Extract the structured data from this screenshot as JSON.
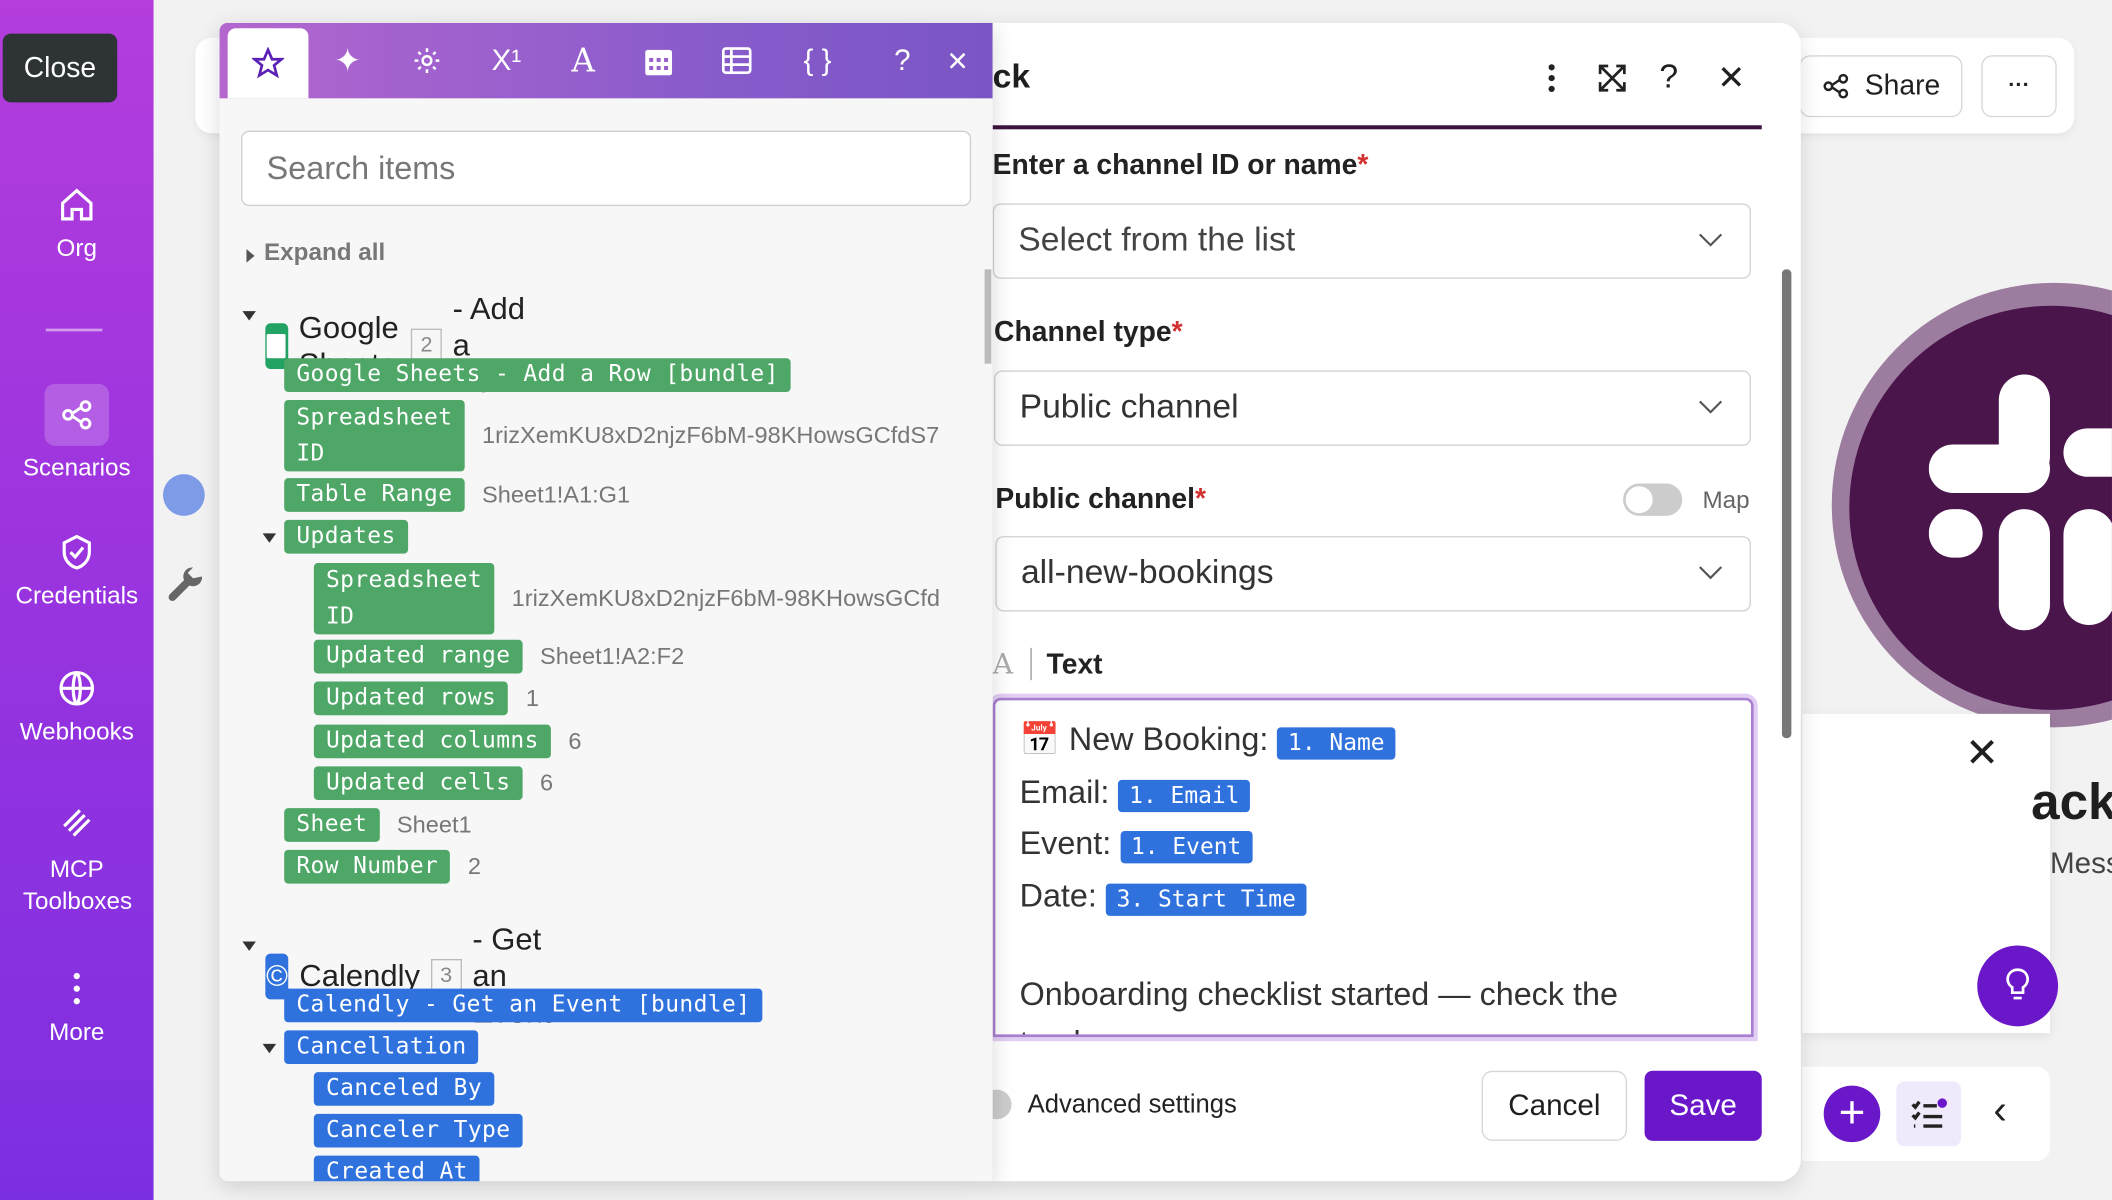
{
  "sidebar": {
    "close_tooltip": "Close",
    "items": [
      {
        "label": "Org",
        "icon": "home-icon"
      },
      {
        "label": "Scenarios",
        "icon": "share-nodes-icon",
        "active": true
      },
      {
        "label": "Credentials",
        "icon": "shield-check-icon"
      },
      {
        "label": "Webhooks",
        "icon": "globe-icon"
      },
      {
        "label": "MCP Toolboxes",
        "icon": "toolbox-icon"
      },
      {
        "label": "More",
        "icon": "kebab-icon"
      }
    ]
  },
  "topbar": {
    "share_label": "Share",
    "more_label": "···"
  },
  "mapper": {
    "tabs": [
      "star-icon",
      "sparkles-icon",
      "gear-icon",
      "superscript-icon",
      "text-icon",
      "calendar-icon",
      "table-icon",
      "braces-icon"
    ],
    "help_label": "?",
    "close_label": "×",
    "search_placeholder": "Search items",
    "expand_all": "Expand all",
    "modules": [
      {
        "app": "Google Sheets",
        "number": "2",
        "action": "- Add a Row",
        "bundle": "Google Sheets - Add a Row [bundle]",
        "fields": [
          {
            "label": "Spreadsheet\nID",
            "value": "1rizXemKU8xD2njzF6bM-98KHowsGCfdS7"
          },
          {
            "label": "Table Range",
            "value": "Sheet1!A1:G1"
          },
          {
            "label": "Updates",
            "value": ""
          },
          {
            "label": "Spreadsheet\nID",
            "value": "1rizXemKU8xD2njzF6bM-98KHowsGCfd"
          },
          {
            "label": "Updated range",
            "value": "Sheet1!A2:F2"
          },
          {
            "label": "Updated rows",
            "value": "1"
          },
          {
            "label": "Updated columns",
            "value": "6"
          },
          {
            "label": "Updated cells",
            "value": "6"
          },
          {
            "label": "Sheet",
            "value": "Sheet1"
          },
          {
            "label": "Row Number",
            "value": "2"
          }
        ]
      },
      {
        "app": "Calendly",
        "number": "3",
        "action": "- Get an Event",
        "bundle": "Calendly - Get an Event [bundle]",
        "fields": [
          {
            "label": "Cancellation"
          },
          {
            "label": "Canceled By"
          },
          {
            "label": "Canceler Type"
          },
          {
            "label": "Created At"
          }
        ]
      }
    ]
  },
  "module": {
    "title_fragment": "ck",
    "fields": {
      "channel_label": "Enter a channel ID or name",
      "channel_placeholder": "Select from the list",
      "type_label": "Channel type",
      "type_value": "Public channel",
      "public_label": "Public channel",
      "map_label": "Map",
      "public_value": "all-new-bookings",
      "text_label": "Text",
      "text_type_icon": "A"
    },
    "text": {
      "l1": "New Booking:",
      "t1": "1. Name",
      "l2": "Email:",
      "t2": "1. Email",
      "l3": "Event:",
      "t3": "1. Event",
      "l4": "Date:",
      "t4": "3. Start Time",
      "l5": "Onboarding checklist started — check the tracker:"
    },
    "required_mark": "*",
    "advanced_label": "Advanced settings",
    "cancel_label": "Cancel",
    "save_label": "Save"
  },
  "side_panel": {
    "title_fragment": "ack",
    "subtitle_fragment": "Mess"
  },
  "colors": {
    "brand": "#6a17c9",
    "sheets_green": "#4ea667",
    "calendly_blue": "#2f72de",
    "slack_aubergine": "#4a154b"
  }
}
